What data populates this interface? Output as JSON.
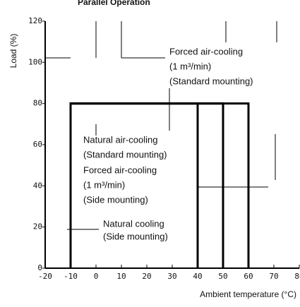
{
  "chart_data": {
    "type": "line",
    "title": "Parallel Operation",
    "ylabel": "Load (%)",
    "xlabel": "Ambient temperature (°C)",
    "xlim": [
      -20,
      80
    ],
    "xticks": [
      -20,
      -10,
      0,
      10,
      20,
      30,
      40,
      50,
      60,
      70,
      80
    ],
    "ylim": [
      0,
      120
    ],
    "yticks": [
      0,
      20,
      40,
      60,
      80,
      100,
      120
    ],
    "color": "#000000",
    "series": [
      {
        "label": [
          "Forced air-cooling",
          "(1 m³/min)",
          "(Standard mounting)"
        ],
        "x": [
          -10,
          -10,
          60,
          60
        ],
        "values": [
          0,
          80,
          80,
          0
        ]
      },
      {
        "label": [
          "Natural air-cooling",
          "(Standard mounting)"
        ],
        "x": [
          -10,
          -10,
          50,
          50
        ],
        "values": [
          0,
          80,
          80,
          0
        ]
      },
      {
        "label": [
          "Forced air-cooling",
          "(1 m³/min)",
          "(Side mounting)"
        ],
        "x": [
          -10,
          -10,
          50,
          50
        ],
        "values": [
          0,
          80,
          80,
          0
        ]
      },
      {
        "label": [
          "Natural cooling",
          "(Side mounting)"
        ],
        "x": [
          -10,
          -10,
          40,
          40
        ],
        "values": [
          0,
          80,
          80,
          0
        ]
      }
    ]
  }
}
